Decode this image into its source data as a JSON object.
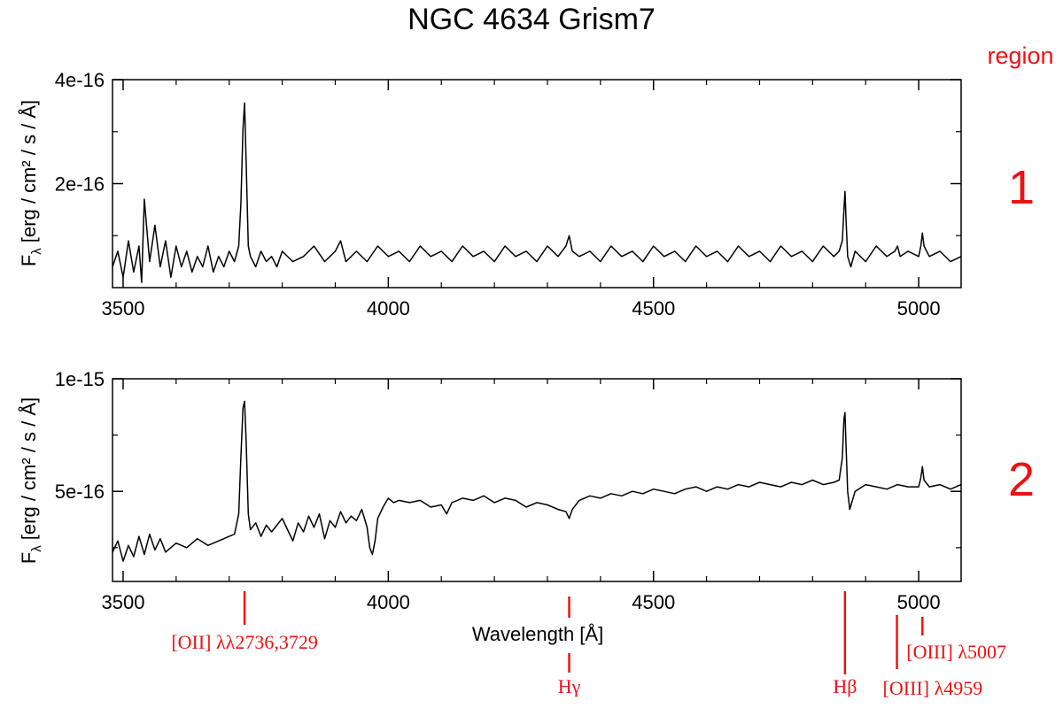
{
  "chart_data": {
    "type": "line",
    "title": "NGC 4634 Grism7",
    "xlabel": "Wavelength [Å]",
    "ylabel_main": "F",
    "ylabel_sub": "λ",
    "ylabel_units": "[erg / cm² / s / Å]",
    "region_header": "region",
    "xlim": [
      3480,
      5080
    ],
    "x_ticks": [
      3500,
      4000,
      4500,
      5000
    ],
    "x_tick_labels": [
      "3500",
      "4000",
      "4500",
      "5000"
    ],
    "x_minor_step": 100,
    "colors": {
      "spectrum": "#000000",
      "annotation": "#ee1111"
    },
    "panels": [
      {
        "region": "1",
        "ylim": [
          0,
          4e-16
        ],
        "y_ticks": [
          2e-16,
          4e-16
        ],
        "y_tick_labels": [
          "2e-16",
          "4e-16"
        ],
        "y_minor_ticks": [
          1e-16,
          3e-16
        ],
        "spectrum": {
          "x": [
            3480,
            3490,
            3500,
            3510,
            3520,
            3530,
            3535,
            3540,
            3550,
            3560,
            3570,
            3580,
            3590,
            3600,
            3610,
            3620,
            3630,
            3640,
            3650,
            3660,
            3670,
            3680,
            3690,
            3700,
            3710,
            3718,
            3722,
            3726,
            3729,
            3732,
            3736,
            3740,
            3750,
            3760,
            3770,
            3780,
            3790,
            3800,
            3820,
            3840,
            3860,
            3880,
            3900,
            3910,
            3920,
            3940,
            3960,
            3980,
            4000,
            4020,
            4040,
            4060,
            4080,
            4100,
            4120,
            4140,
            4160,
            4180,
            4200,
            4220,
            4240,
            4260,
            4280,
            4300,
            4320,
            4335,
            4341,
            4347,
            4360,
            4380,
            4400,
            4420,
            4440,
            4460,
            4480,
            4500,
            4520,
            4540,
            4560,
            4580,
            4600,
            4620,
            4640,
            4660,
            4680,
            4700,
            4720,
            4740,
            4760,
            4780,
            4800,
            4820,
            4840,
            4850,
            4856,
            4859,
            4861,
            4863,
            4866,
            4872,
            4880,
            4900,
            4920,
            4940,
            4955,
            4960,
            4965,
            4980,
            5000,
            5004,
            5007,
            5010,
            5020,
            5040,
            5060,
            5080
          ],
          "y": [
            4e-17,
            7e-17,
            2e-17,
            9e-17,
            3e-17,
            8e-17,
            1e-17,
            1.7e-16,
            5e-17,
            1.2e-16,
            4e-17,
            9e-17,
            2e-17,
            8e-17,
            4e-17,
            7e-17,
            3e-17,
            6e-17,
            4e-17,
            8e-17,
            3e-17,
            6e-17,
            4e-17,
            7e-17,
            5e-17,
            8e-17,
            1.6e-16,
            3.05e-16,
            3.55e-16,
            2.4e-16,
            8e-17,
            6e-17,
            4e-17,
            7e-17,
            5e-17,
            6e-17,
            4e-17,
            7e-17,
            5e-17,
            6e-17,
            8e-17,
            5e-17,
            7e-17,
            9e-17,
            5e-17,
            7e-17,
            5e-17,
            8e-17,
            6e-17,
            7e-17,
            5e-17,
            8e-17,
            6e-17,
            7e-17,
            5e-17,
            8e-17,
            6e-17,
            7e-17,
            5e-17,
            8e-17,
            6e-17,
            7e-17,
            5e-17,
            8e-17,
            6e-17,
            8e-17,
            1e-16,
            7e-17,
            6e-17,
            7e-17,
            5e-17,
            8e-17,
            6e-17,
            7e-17,
            5e-17,
            8e-17,
            6e-17,
            7e-17,
            5e-17,
            8e-17,
            6e-17,
            7e-17,
            5e-17,
            8e-17,
            6e-17,
            7e-17,
            5e-17,
            8e-17,
            6e-17,
            7e-17,
            5e-17,
            8e-17,
            6e-17,
            7e-17,
            9e-17,
            1.5e-16,
            1.85e-16,
            1.3e-16,
            6e-17,
            4e-17,
            7e-17,
            5e-17,
            8e-17,
            6e-17,
            7e-17,
            8e-17,
            6e-17,
            7e-17,
            6e-17,
            8e-17,
            1.05e-16,
            8e-17,
            6e-17,
            7e-17,
            5e-17,
            6e-17
          ]
        }
      },
      {
        "region": "2",
        "ylim": [
          1e-16,
          1e-15
        ],
        "y_ticks": [
          5e-16,
          1e-15
        ],
        "y_tick_labels": [
          "5e-16",
          "1e-15"
        ],
        "y_minor_ticks": [
          2.5e-16,
          7.5e-16
        ],
        "spectrum": {
          "x": [
            3480,
            3490,
            3500,
            3510,
            3520,
            3530,
            3540,
            3550,
            3560,
            3570,
            3580,
            3600,
            3620,
            3640,
            3660,
            3680,
            3700,
            3710,
            3718,
            3722,
            3726,
            3729,
            3732,
            3736,
            3740,
            3750,
            3760,
            3770,
            3780,
            3790,
            3800,
            3810,
            3820,
            3830,
            3840,
            3850,
            3860,
            3870,
            3880,
            3890,
            3900,
            3910,
            3920,
            3930,
            3940,
            3950,
            3960,
            3965,
            3970,
            3975,
            3980,
            3990,
            4000,
            4010,
            4020,
            4040,
            4060,
            4080,
            4100,
            4110,
            4120,
            4140,
            4160,
            4180,
            4200,
            4220,
            4240,
            4260,
            4280,
            4300,
            4320,
            4335,
            4341,
            4347,
            4360,
            4380,
            4400,
            4420,
            4440,
            4460,
            4480,
            4500,
            4520,
            4540,
            4560,
            4580,
            4600,
            4620,
            4640,
            4660,
            4680,
            4700,
            4720,
            4740,
            4760,
            4780,
            4800,
            4820,
            4840,
            4850,
            4856,
            4859,
            4861,
            4863,
            4866,
            4870,
            4880,
            4900,
            4920,
            4940,
            4960,
            4980,
            5000,
            5004,
            5007,
            5010,
            5020,
            5040,
            5060,
            5080
          ],
          "y": [
            2.3e-16,
            2.8e-16,
            1.9e-16,
            2.6e-16,
            2.1e-16,
            3e-16,
            2.2e-16,
            3.1e-16,
            2.4e-16,
            2.9e-16,
            2.3e-16,
            2.7e-16,
            2.5e-16,
            2.9e-16,
            2.6e-16,
            2.8e-16,
            3e-16,
            3.1e-16,
            4e-16,
            6.5e-16,
            8.7e-16,
            9e-16,
            7.2e-16,
            4e-16,
            3.3e-16,
            3.6e-16,
            3e-16,
            3.5e-16,
            3.2e-16,
            3.5e-16,
            3.8e-16,
            3.3e-16,
            2.8e-16,
            3.6e-16,
            3.2e-16,
            3.9e-16,
            3.4e-16,
            4e-16,
            2.9e-16,
            3.7e-16,
            3.4e-16,
            4.1e-16,
            3.6e-16,
            3.9e-16,
            3.7e-16,
            4.2e-16,
            3.4e-16,
            2.5e-16,
            2.2e-16,
            2.8e-16,
            3.8e-16,
            4.3e-16,
            4.7e-16,
            4.5e-16,
            4.6e-16,
            4.5e-16,
            4.6e-16,
            4.3e-16,
            4.4e-16,
            4e-16,
            4.5e-16,
            4.7e-16,
            4.6e-16,
            4.8e-16,
            4.5e-16,
            4.7e-16,
            4.6e-16,
            4.3e-16,
            4.5e-16,
            4.4e-16,
            4.2e-16,
            4.1e-16,
            3.8e-16,
            4.2e-16,
            4.6e-16,
            4.8e-16,
            4.7e-16,
            4.9e-16,
            4.8e-16,
            5e-16,
            4.9e-16,
            5.1e-16,
            5e-16,
            4.9e-16,
            5.1e-16,
            5.2e-16,
            5e-16,
            5.2e-16,
            5.1e-16,
            5.3e-16,
            5.2e-16,
            5.4e-16,
            5.3e-16,
            5.2e-16,
            5.4e-16,
            5.3e-16,
            5.5e-16,
            5.3e-16,
            5.4e-16,
            5.5e-16,
            6.5e-16,
            8.2e-16,
            8.5e-16,
            7e-16,
            5e-16,
            4.2e-16,
            5e-16,
            5.3e-16,
            5.2e-16,
            5.1e-16,
            5.3e-16,
            5.2e-16,
            5.2e-16,
            5.6e-16,
            6.1e-16,
            5.5e-16,
            5.2e-16,
            5.3e-16,
            5.1e-16,
            5.3e-16
          ]
        }
      }
    ],
    "line_markers": [
      {
        "label": "[OII] λλ2736,3729",
        "x": 3729
      },
      {
        "label": "Hγ",
        "x": 4341
      },
      {
        "label": "Hβ",
        "x": 4861
      },
      {
        "label": "[OIII] λ4959",
        "x": 4959
      },
      {
        "label": "[OIII] λ5007",
        "x": 5007
      }
    ]
  }
}
